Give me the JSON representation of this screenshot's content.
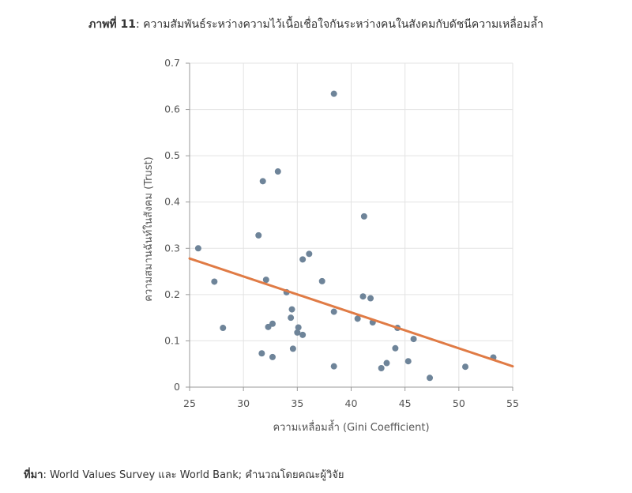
{
  "title": {
    "label": "ภาพที่ 11",
    "text": ": ความสัมพันธ์ระหว่างความไว้เนื้อเชื่อใจกันระหว่างคนในสังคมกับดัชนีความเหลื่อมล้ำ"
  },
  "source": {
    "label": "ที่มา",
    "text": ": World Values Survey และ World Bank; คำนวณโดยคณะผู้วิจัย"
  },
  "chart_data": {
    "type": "scatter",
    "xlabel": "ความเหลื่อมล้ำ (Gini Coefficient)",
    "ylabel": "ความสมานฉันท์ในสังคม (Trust)",
    "xlim": [
      25,
      55
    ],
    "ylim": [
      0,
      0.7
    ],
    "xticks": [
      25,
      30,
      35,
      40,
      45,
      50,
      55
    ],
    "yticks": [
      0,
      0.1,
      0.2,
      0.3,
      0.4,
      0.5,
      0.6,
      0.7
    ],
    "ytick_labels": [
      "0",
      "0.1",
      "0.2",
      "0.3",
      "0.4",
      "0.5",
      "0.6",
      "0.7"
    ],
    "grid": true,
    "point_color": "#6e8499",
    "trendline": {
      "x": [
        25,
        55
      ],
      "y": [
        0.278,
        0.045
      ],
      "color": "#e07b45"
    },
    "points": [
      {
        "x": 25.8,
        "y": 0.3
      },
      {
        "x": 27.3,
        "y": 0.228
      },
      {
        "x": 28.1,
        "y": 0.128
      },
      {
        "x": 31.4,
        "y": 0.328
      },
      {
        "x": 31.7,
        "y": 0.073
      },
      {
        "x": 31.8,
        "y": 0.445
      },
      {
        "x": 32.1,
        "y": 0.232
      },
      {
        "x": 32.3,
        "y": 0.13
      },
      {
        "x": 32.7,
        "y": 0.137
      },
      {
        "x": 32.7,
        "y": 0.065
      },
      {
        "x": 33.2,
        "y": 0.466
      },
      {
        "x": 34.0,
        "y": 0.205
      },
      {
        "x": 34.4,
        "y": 0.15
      },
      {
        "x": 34.5,
        "y": 0.168
      },
      {
        "x": 34.6,
        "y": 0.083
      },
      {
        "x": 35.0,
        "y": 0.118
      },
      {
        "x": 35.1,
        "y": 0.129
      },
      {
        "x": 35.5,
        "y": 0.276
      },
      {
        "x": 35.5,
        "y": 0.113
      },
      {
        "x": 36.1,
        "y": 0.288
      },
      {
        "x": 37.3,
        "y": 0.229
      },
      {
        "x": 38.4,
        "y": 0.634
      },
      {
        "x": 38.4,
        "y": 0.163
      },
      {
        "x": 38.4,
        "y": 0.045
      },
      {
        "x": 40.6,
        "y": 0.148
      },
      {
        "x": 41.1,
        "y": 0.196
      },
      {
        "x": 41.2,
        "y": 0.369
      },
      {
        "x": 41.8,
        "y": 0.192
      },
      {
        "x": 42.0,
        "y": 0.14
      },
      {
        "x": 42.8,
        "y": 0.041
      },
      {
        "x": 43.3,
        "y": 0.052
      },
      {
        "x": 44.1,
        "y": 0.084
      },
      {
        "x": 44.3,
        "y": 0.128
      },
      {
        "x": 45.3,
        "y": 0.056
      },
      {
        "x": 45.8,
        "y": 0.104
      },
      {
        "x": 47.3,
        "y": 0.02
      },
      {
        "x": 50.6,
        "y": 0.044
      },
      {
        "x": 53.2,
        "y": 0.064
      }
    ]
  }
}
